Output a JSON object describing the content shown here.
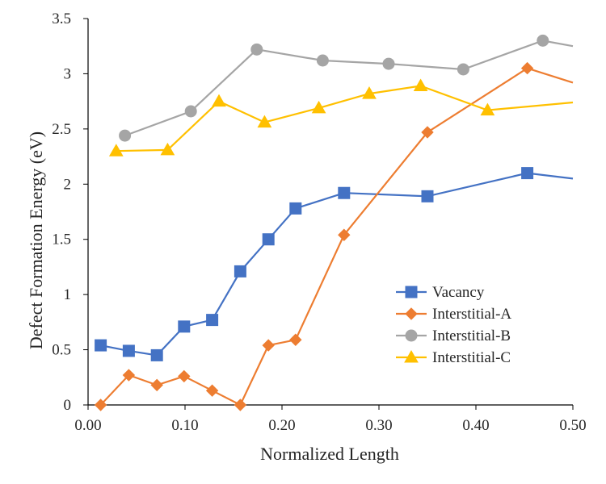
{
  "chart_data": {
    "type": "line",
    "title": "",
    "xlabel": "Normalized Length",
    "ylabel": "Defect Formation Energy (eV)",
    "xlim": [
      0,
      0.5
    ],
    "ylim": [
      0,
      3.5
    ],
    "x_ticks": [
      "0.00",
      "0.10",
      "0.20",
      "0.30",
      "0.40",
      "0.50"
    ],
    "y_ticks": [
      "0",
      "0.5",
      "1",
      "1.5",
      "2",
      "2.5",
      "3",
      "3.5"
    ],
    "grid": false,
    "legend_position": "bottom-right",
    "series": [
      {
        "name": "Vacancy",
        "color": "#4472C4",
        "marker": "square",
        "x": [
          0.013,
          0.042,
          0.071,
          0.099,
          0.128,
          0.157,
          0.186,
          0.214,
          0.264,
          0.35,
          0.453,
          0.5
        ],
        "y": [
          0.54,
          0.49,
          0.45,
          0.71,
          0.77,
          1.21,
          1.5,
          1.78,
          1.92,
          1.89,
          2.1,
          2.05
        ]
      },
      {
        "name": "Interstitial-A",
        "color": "#ED7D31",
        "marker": "diamond",
        "x": [
          0.013,
          0.042,
          0.071,
          0.099,
          0.128,
          0.157,
          0.186,
          0.214,
          0.264,
          0.35,
          0.453,
          0.5
        ],
        "y": [
          0.0,
          0.27,
          0.18,
          0.26,
          0.13,
          0.0,
          0.54,
          0.59,
          1.54,
          2.47,
          3.05,
          2.92
        ]
      },
      {
        "name": "Interstitial-B",
        "color": "#A5A5A5",
        "marker": "circle",
        "x": [
          0.038,
          0.106,
          0.174,
          0.242,
          0.31,
          0.387,
          0.469,
          0.5
        ],
        "y": [
          2.44,
          2.66,
          3.22,
          3.12,
          3.09,
          3.04,
          3.3,
          3.25
        ]
      },
      {
        "name": "Interstitial-C",
        "color": "#FFC000",
        "marker": "triangle",
        "x": [
          0.029,
          0.082,
          0.135,
          0.182,
          0.238,
          0.29,
          0.343,
          0.412,
          0.5
        ],
        "y": [
          2.3,
          2.31,
          2.75,
          2.56,
          2.69,
          2.82,
          2.89,
          2.67,
          2.74
        ]
      }
    ]
  }
}
